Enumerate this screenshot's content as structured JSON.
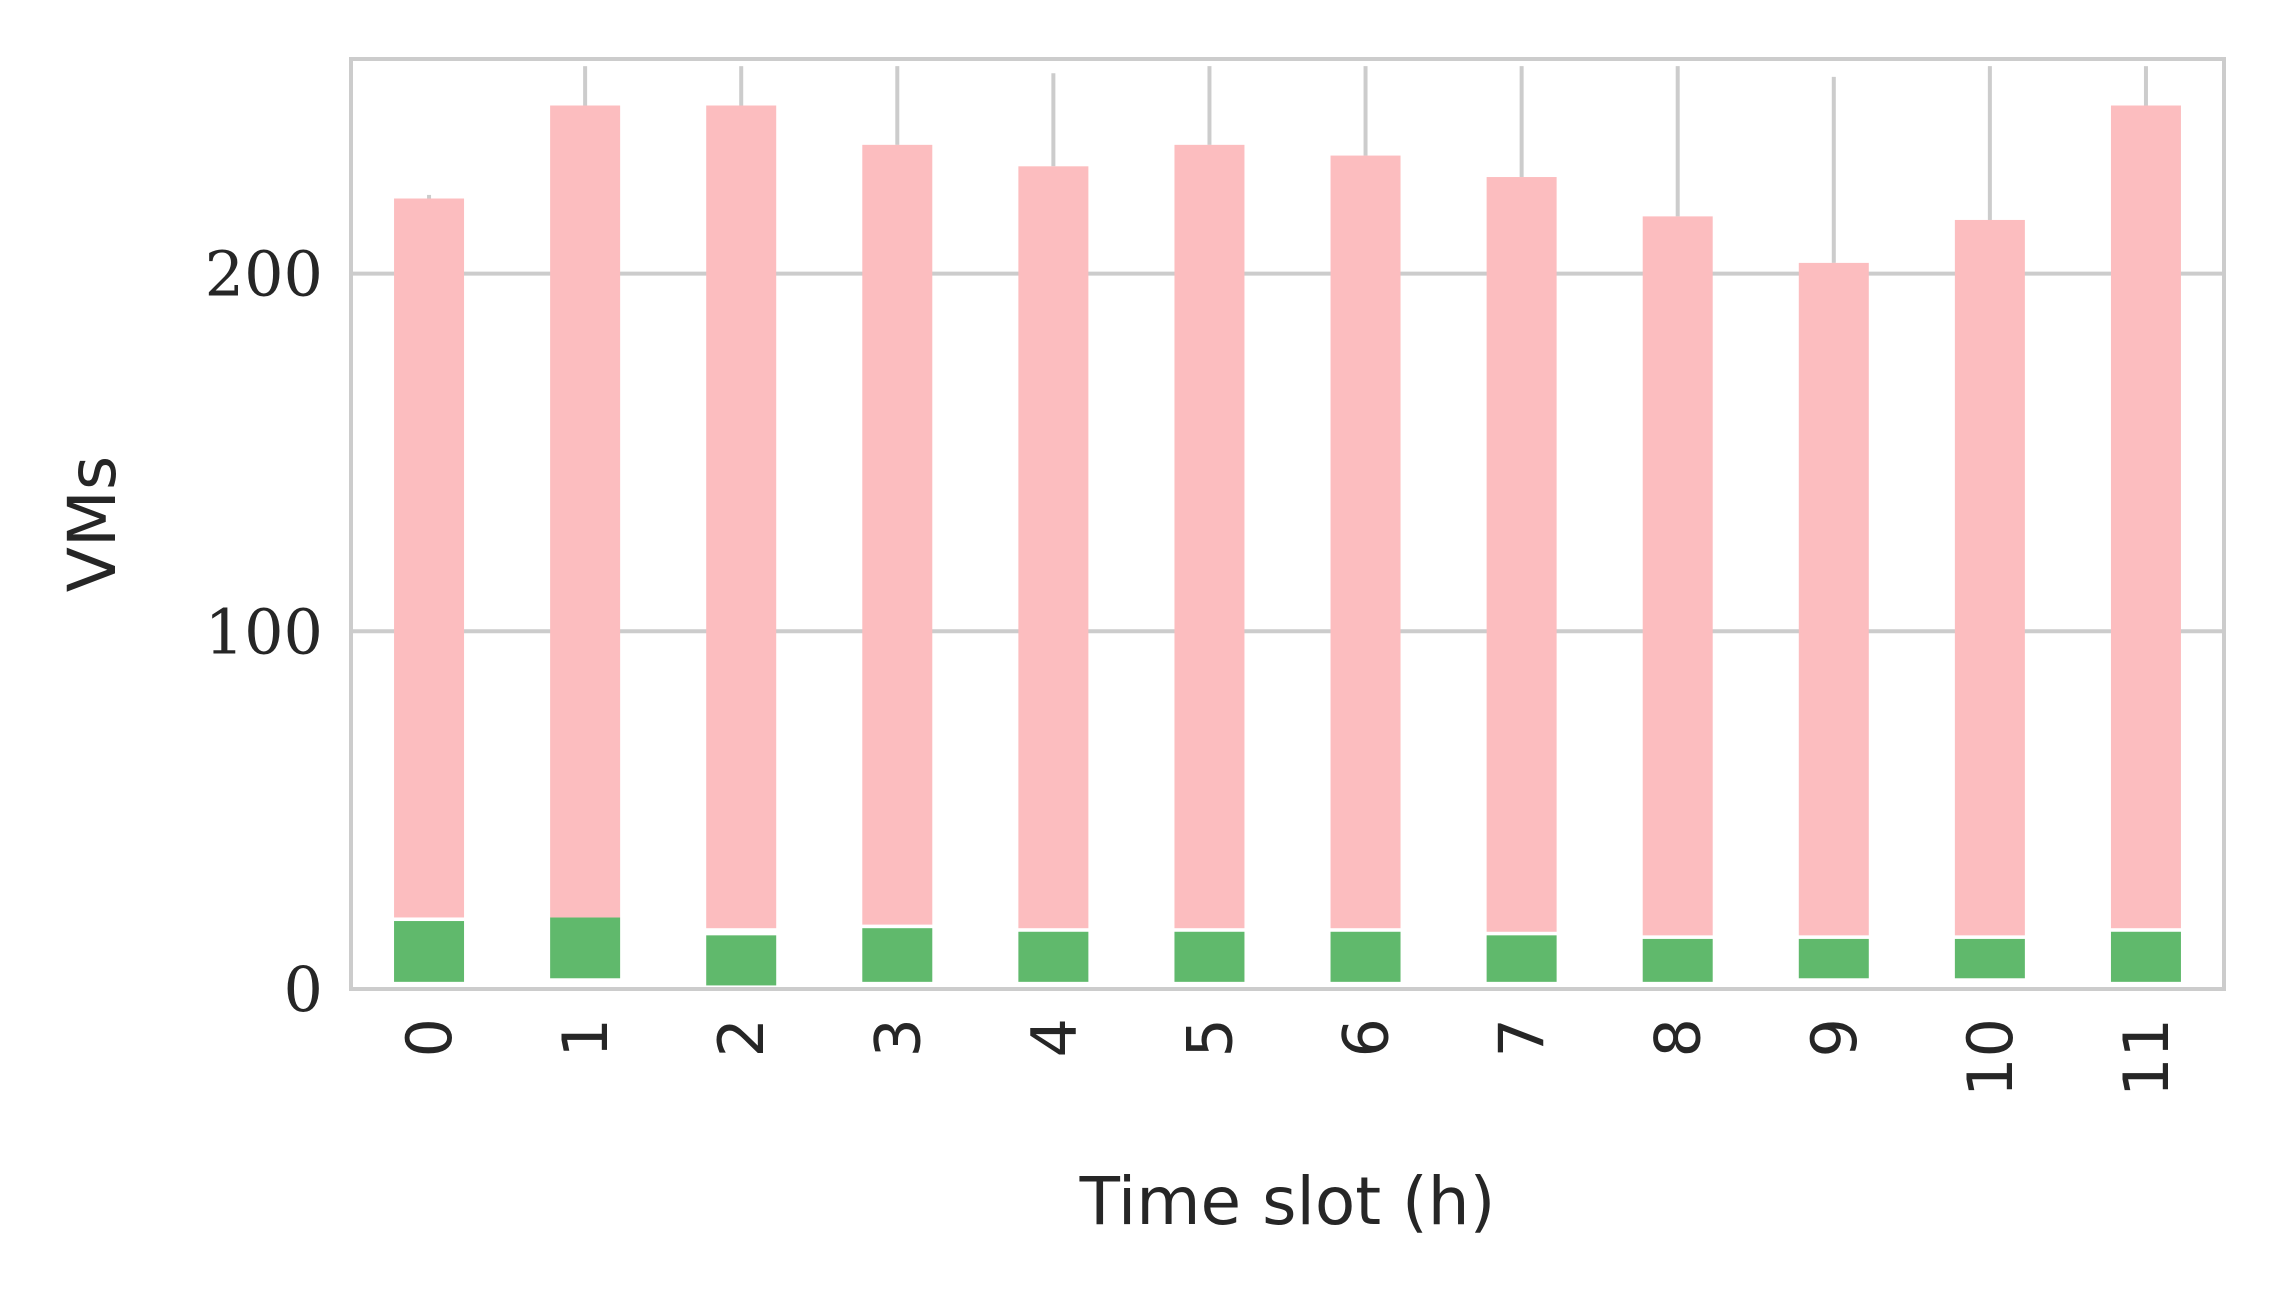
{
  "chart_data": {
    "type": "bar",
    "stacked": true,
    "title": "",
    "xlabel": "Time slot (h)",
    "ylabel": "VMs",
    "categories": [
      "0",
      "1",
      "2",
      "3",
      "4",
      "5",
      "6",
      "7",
      "8",
      "9",
      "10",
      "11"
    ],
    "ylim": [
      0,
      260
    ],
    "yticks": [
      0,
      100,
      200
    ],
    "grid": true,
    "legend": "none",
    "series": [
      {
        "color": "#60b96c",
        "bottoms": [
          2,
          3,
          1,
          2,
          2,
          2,
          2,
          2,
          2,
          3,
          3,
          2
        ],
        "values": [
          17,
          17,
          14,
          15,
          14,
          14,
          14,
          13,
          12,
          11,
          11,
          14
        ]
      },
      {
        "color": "#fcbdbf",
        "bottoms": [
          20,
          20,
          17,
          18,
          17,
          17,
          17,
          16,
          15,
          15,
          15,
          17
        ],
        "values": [
          201,
          227,
          230,
          218,
          213,
          219,
          216,
          211,
          201,
          188,
          200,
          230
        ]
      }
    ],
    "error_bar_tops": [
      222,
      258,
      258,
      258,
      256,
      258,
      258,
      258,
      258,
      255,
      258,
      258
    ]
  }
}
